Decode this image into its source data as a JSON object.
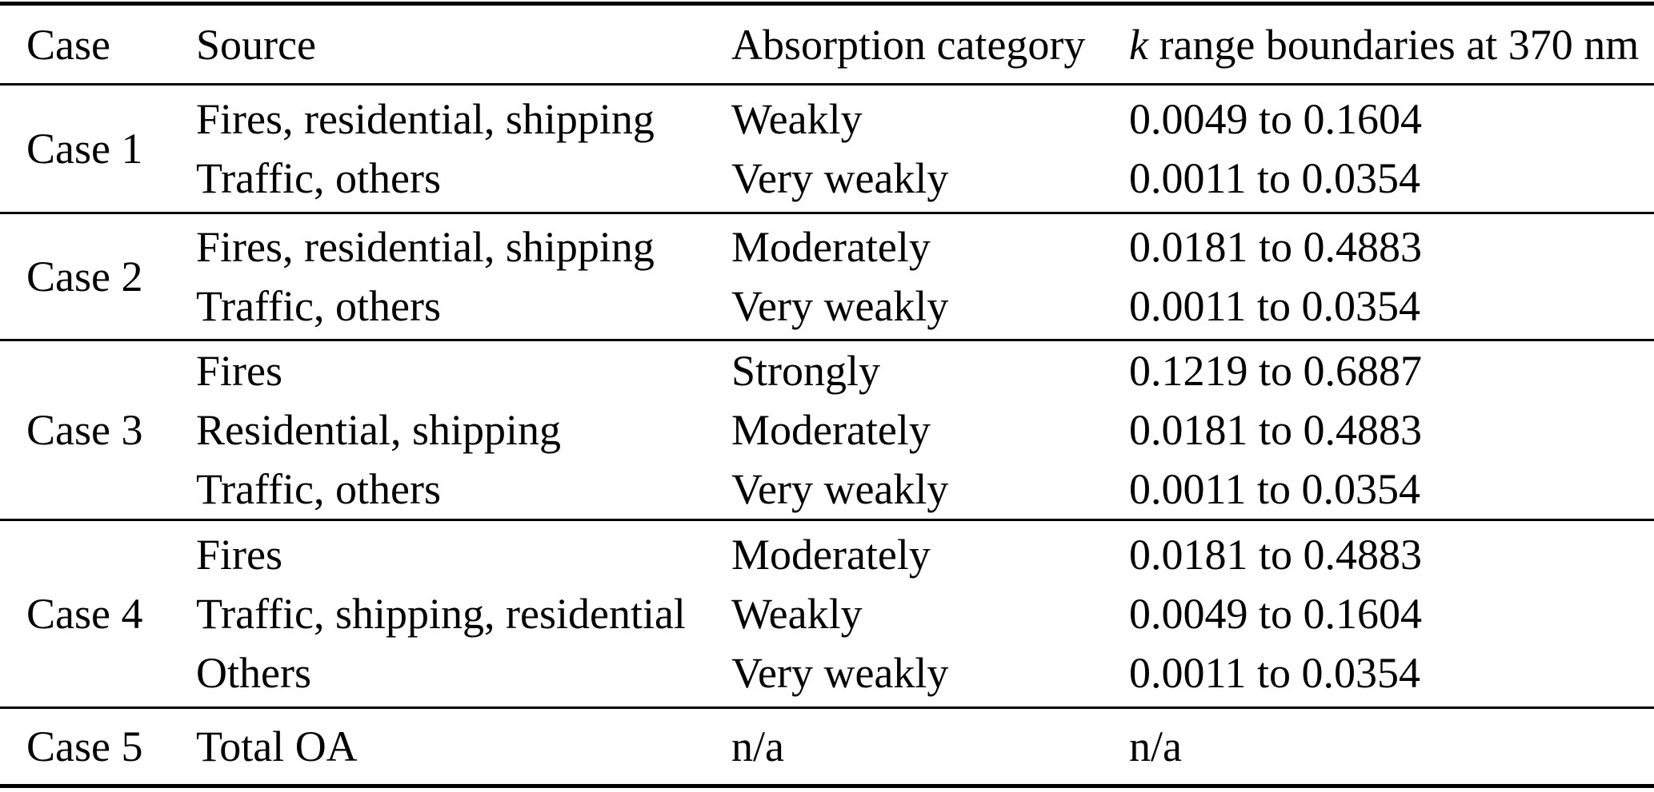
{
  "table": {
    "header": {
      "case": "Case",
      "source": "Source",
      "absorption": "Absorption category",
      "k_italic": "k",
      "k_rest": " range boundaries at 370 nm"
    },
    "rows": [
      {
        "case": "Case 1",
        "sources": [
          "Fires, residential, shipping",
          "Traffic, others"
        ],
        "categories": [
          "Weakly",
          "Very weakly"
        ],
        "k_ranges": [
          "0.0049 to 0.1604",
          "0.0011 to 0.0354"
        ]
      },
      {
        "case": "Case 2",
        "sources": [
          "Fires, residential, shipping",
          "Traffic, others"
        ],
        "categories": [
          "Moderately",
          "Very weakly"
        ],
        "k_ranges": [
          "0.0181 to 0.4883",
          "0.0011 to 0.0354"
        ]
      },
      {
        "case": "Case 3",
        "sources": [
          "Fires",
          "Residential, shipping",
          "Traffic, others"
        ],
        "categories": [
          "Strongly",
          "Moderately",
          "Very weakly"
        ],
        "k_ranges": [
          "0.1219 to 0.6887",
          "0.0181 to 0.4883",
          "0.0011 to 0.0354"
        ]
      },
      {
        "case": "Case 4",
        "sources": [
          "Fires",
          "Traffic, shipping, residential",
          "Others"
        ],
        "categories": [
          "Moderately",
          "Weakly",
          "Very weakly"
        ],
        "k_ranges": [
          "0.0181 to 0.4883",
          "0.0049 to 0.1604",
          "0.0011 to 0.0354"
        ]
      },
      {
        "case": "Case 5",
        "sources": [
          "Total OA"
        ],
        "categories": [
          "n/a"
        ],
        "k_ranges": [
          "n/a"
        ]
      }
    ]
  },
  "chart_data": {
    "type": "table",
    "columns": [
      "Case",
      "Source",
      "Absorption category",
      "k range boundaries at 370 nm"
    ],
    "rows": [
      [
        "Case 1",
        "Fires, residential, shipping",
        "Weakly",
        "0.0049 to 0.1604"
      ],
      [
        "Case 1",
        "Traffic, others",
        "Very weakly",
        "0.0011 to 0.0354"
      ],
      [
        "Case 2",
        "Fires, residential, shipping",
        "Moderately",
        "0.0181 to 0.4883"
      ],
      [
        "Case 2",
        "Traffic, others",
        "Very weakly",
        "0.0011 to 0.0354"
      ],
      [
        "Case 3",
        "Fires",
        "Strongly",
        "0.1219 to 0.6887"
      ],
      [
        "Case 3",
        "Residential, shipping",
        "Moderately",
        "0.0181 to 0.4883"
      ],
      [
        "Case 3",
        "Traffic, others",
        "Very weakly",
        "0.0011 to 0.0354"
      ],
      [
        "Case 4",
        "Fires",
        "Moderately",
        "0.0181 to 0.4883"
      ],
      [
        "Case 4",
        "Traffic, shipping, residential",
        "Weakly",
        "0.0049 to 0.1604"
      ],
      [
        "Case 4",
        "Others",
        "Very weakly",
        "0.0011 to 0.0354"
      ],
      [
        "Case 5",
        "Total OA",
        "n/a",
        "n/a"
      ]
    ]
  },
  "colors": {
    "text": "#000000",
    "background": "#ffffff",
    "rule": "#000000"
  }
}
